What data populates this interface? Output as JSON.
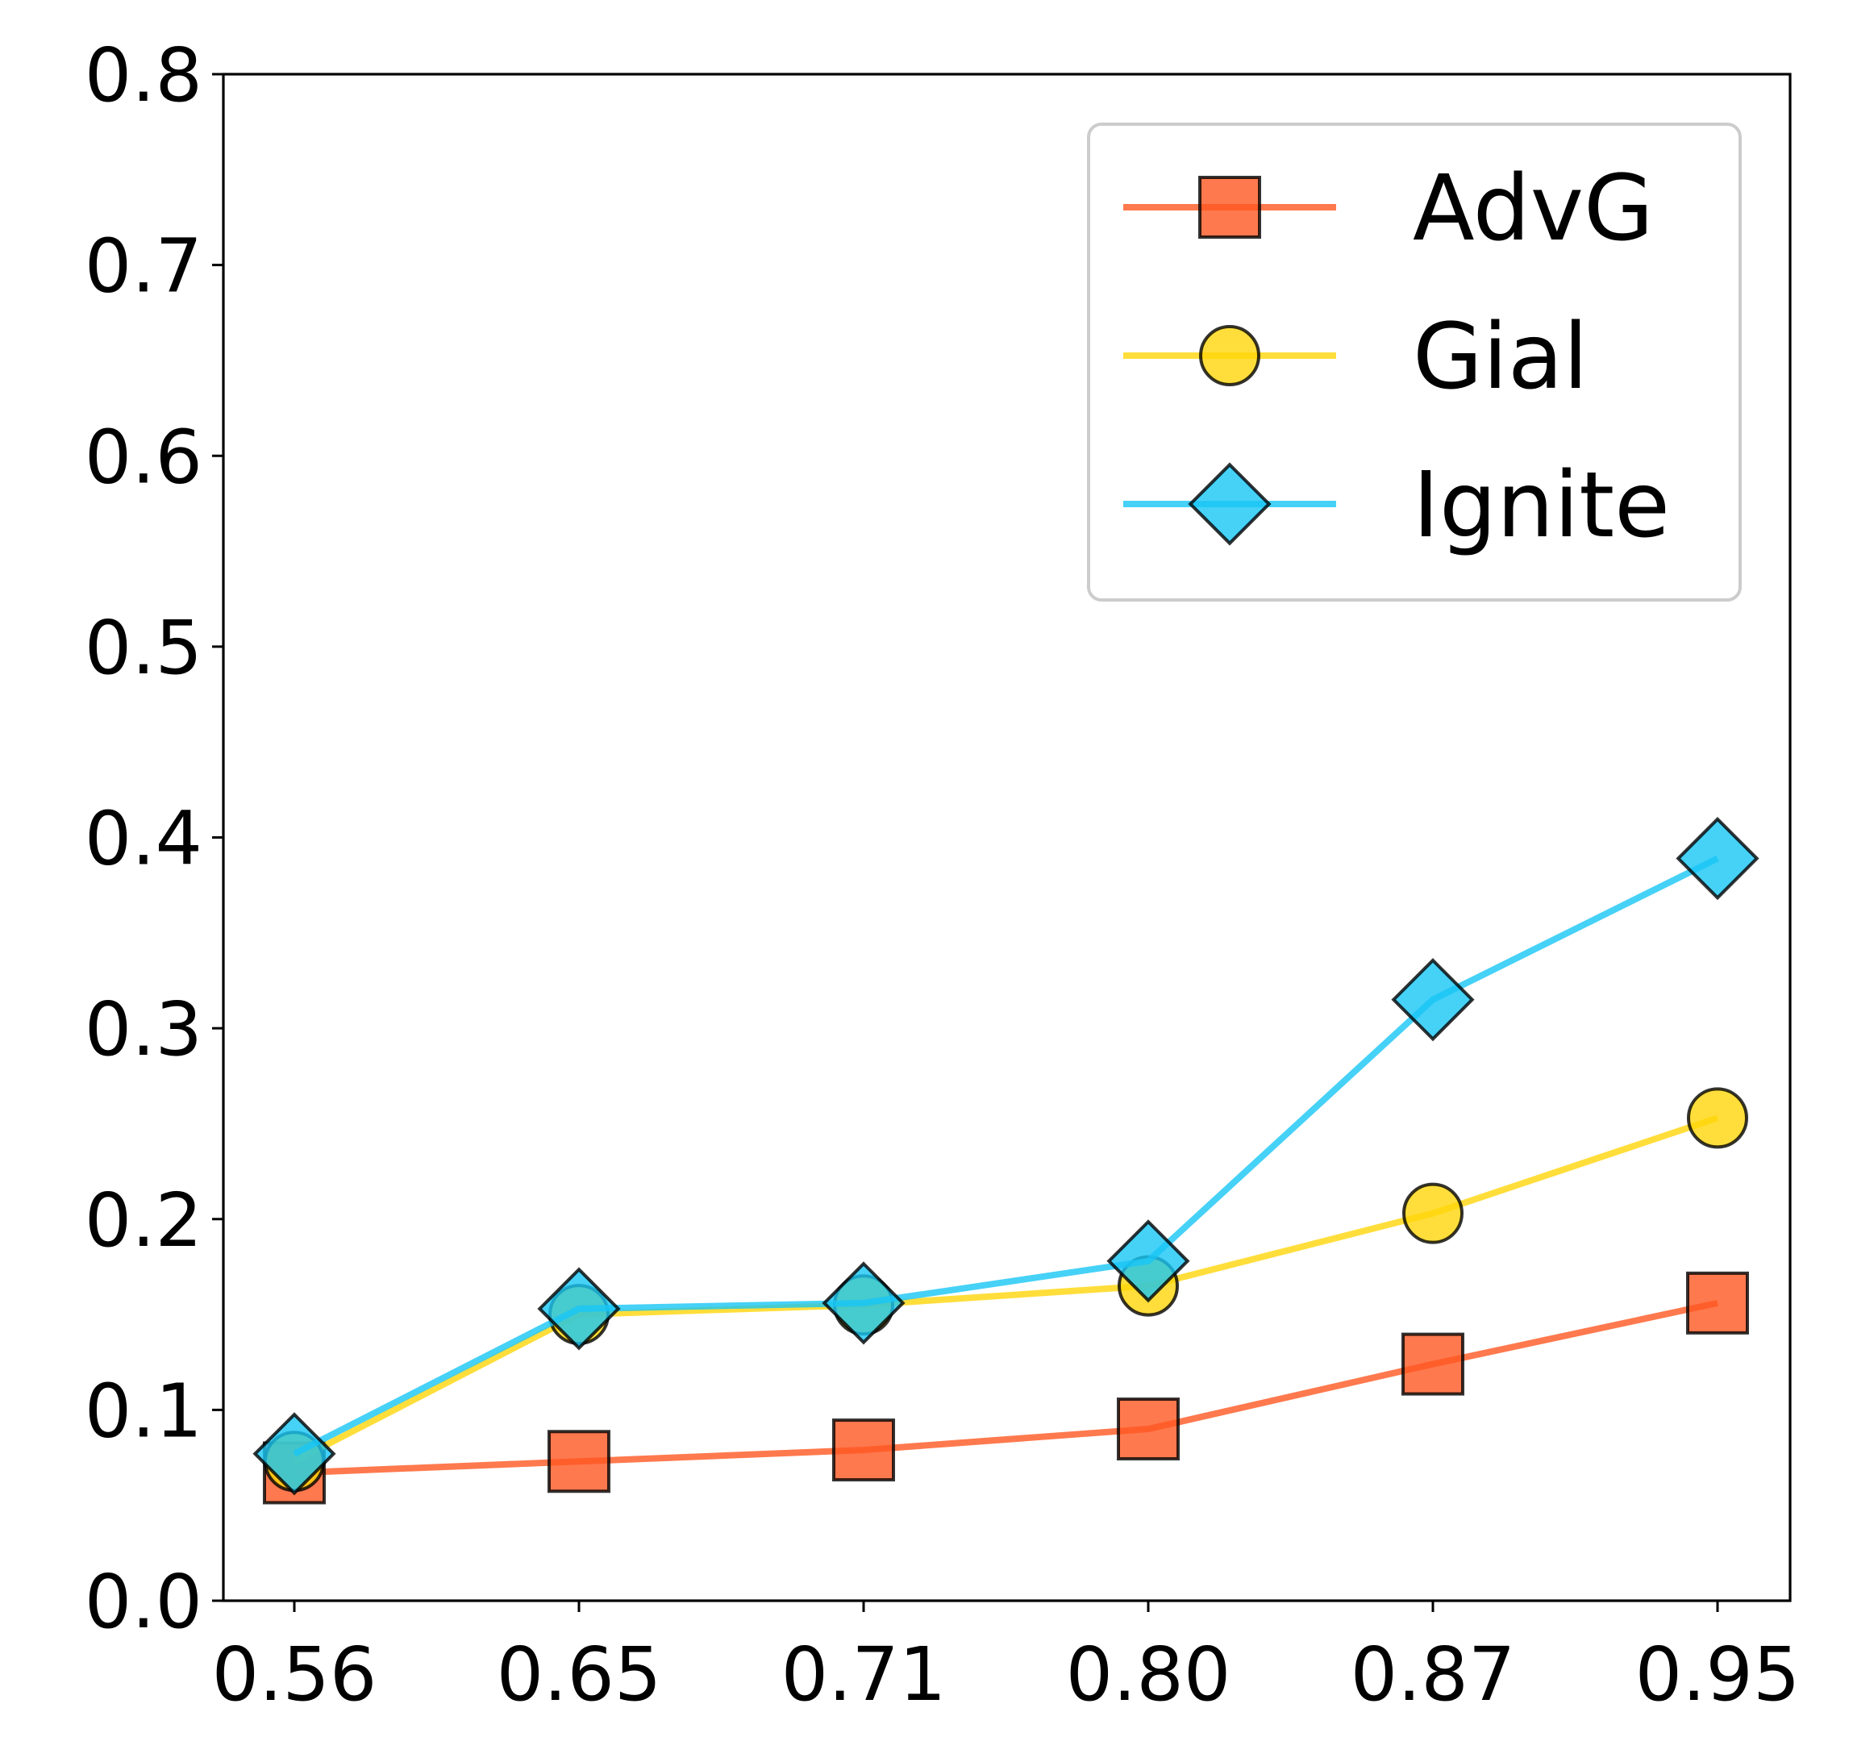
{
  "chart_data": {
    "type": "line",
    "title": "",
    "xlabel": "",
    "ylabel": "",
    "categories": [
      "0.56",
      "0.65",
      "0.71",
      "0.80",
      "0.87",
      "0.95"
    ],
    "ylim": [
      0.0,
      0.8
    ],
    "yticks": [
      "0.0",
      "0.1",
      "0.2",
      "0.3",
      "0.4",
      "0.5",
      "0.6",
      "0.7",
      "0.8"
    ],
    "grid": false,
    "legend_position": "top-right",
    "series": [
      {
        "name": "AdvG",
        "color": "#ff5722",
        "marker": "square",
        "values": [
          0.067,
          0.073,
          0.079,
          0.09,
          0.124,
          0.156
        ]
      },
      {
        "name": "Gial",
        "color": "#ffd60a",
        "marker": "circle",
        "values": [
          0.073,
          0.15,
          0.155,
          0.165,
          0.203,
          0.253
        ]
      },
      {
        "name": "Ignite",
        "color": "#18c5f5",
        "marker": "diamond",
        "values": [
          0.077,
          0.153,
          0.156,
          0.178,
          0.315,
          0.389
        ]
      }
    ]
  }
}
